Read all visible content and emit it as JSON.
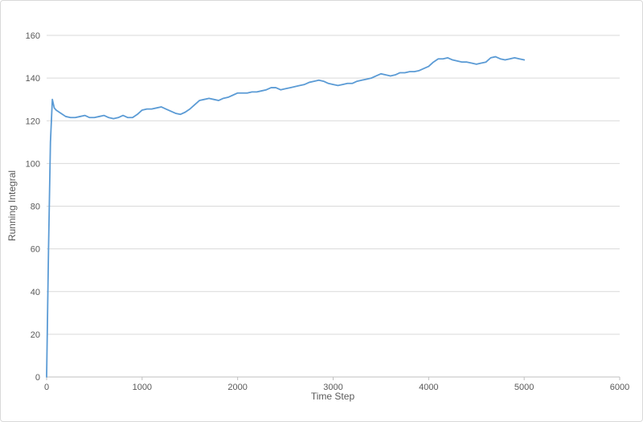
{
  "chart": {
    "title": "",
    "x_axis_title": "Time Step",
    "y_axis_title": "Running Integral"
  },
  "chart_data": {
    "type": "line",
    "title": "",
    "xlabel": "Time Step",
    "ylabel": "Running Integral",
    "xlim": [
      0,
      6000
    ],
    "ylim": [
      0,
      160
    ],
    "x_ticks": [
      0,
      1000,
      2000,
      3000,
      4000,
      5000,
      6000
    ],
    "y_ticks": [
      0,
      20,
      40,
      60,
      80,
      100,
      120,
      140,
      160
    ],
    "grid": "horizontal",
    "legend_position": "none",
    "line_color": "#5B9BD5",
    "gridline_color": "#D9D9D9",
    "axis_line_color": "#BFBFBF",
    "text_color": "#595959",
    "series": [
      {
        "name": "Running Integral",
        "x": [
          0,
          20,
          40,
          60,
          80,
          100,
          150,
          200,
          250,
          300,
          350,
          400,
          450,
          500,
          550,
          600,
          650,
          700,
          750,
          800,
          850,
          900,
          950,
          1000,
          1050,
          1100,
          1150,
          1200,
          1250,
          1300,
          1350,
          1400,
          1450,
          1500,
          1550,
          1600,
          1650,
          1700,
          1750,
          1800,
          1850,
          1900,
          1950,
          2000,
          2050,
          2100,
          2150,
          2200,
          2250,
          2300,
          2350,
          2400,
          2450,
          2500,
          2550,
          2600,
          2650,
          2700,
          2750,
          2800,
          2850,
          2900,
          2950,
          3000,
          3050,
          3100,
          3150,
          3200,
          3250,
          3300,
          3350,
          3400,
          3450,
          3500,
          3550,
          3600,
          3650,
          3700,
          3750,
          3800,
          3850,
          3900,
          3950,
          4000,
          4050,
          4100,
          4150,
          4200,
          4250,
          4300,
          4350,
          4400,
          4450,
          4500,
          4550,
          4600,
          4650,
          4700,
          4750,
          4800,
          4850,
          4900,
          4950,
          5000
        ],
        "y": [
          0,
          60,
          110,
          130,
          126,
          125,
          123.5,
          122,
          121.5,
          121.5,
          122,
          122.5,
          121.5,
          121.5,
          122,
          122.5,
          121.5,
          121,
          121.5,
          122.5,
          121.5,
          121.5,
          123,
          125,
          125.5,
          125.5,
          126,
          126.5,
          125.5,
          124.5,
          123.5,
          123,
          124,
          125.5,
          127.5,
          129.5,
          130,
          130.5,
          130,
          129.5,
          130.5,
          131,
          132,
          133,
          133,
          133,
          133.5,
          133.5,
          134,
          134.5,
          135.5,
          135.5,
          134.5,
          135,
          135.5,
          136,
          136.5,
          137,
          138,
          138.5,
          139,
          138.5,
          137.5,
          137,
          136.5,
          137,
          137.5,
          137.5,
          138.5,
          139,
          139.5,
          140,
          141,
          142,
          141.5,
          141,
          141.5,
          142.5,
          142.5,
          143,
          143,
          143.5,
          144.5,
          145.5,
          147.5,
          149,
          149,
          149.5,
          148.5,
          148,
          147.5,
          147.5,
          147,
          146.5,
          147,
          147.5,
          149.5,
          150,
          149,
          148.5,
          149,
          149.5,
          149,
          148.5
        ]
      }
    ]
  }
}
